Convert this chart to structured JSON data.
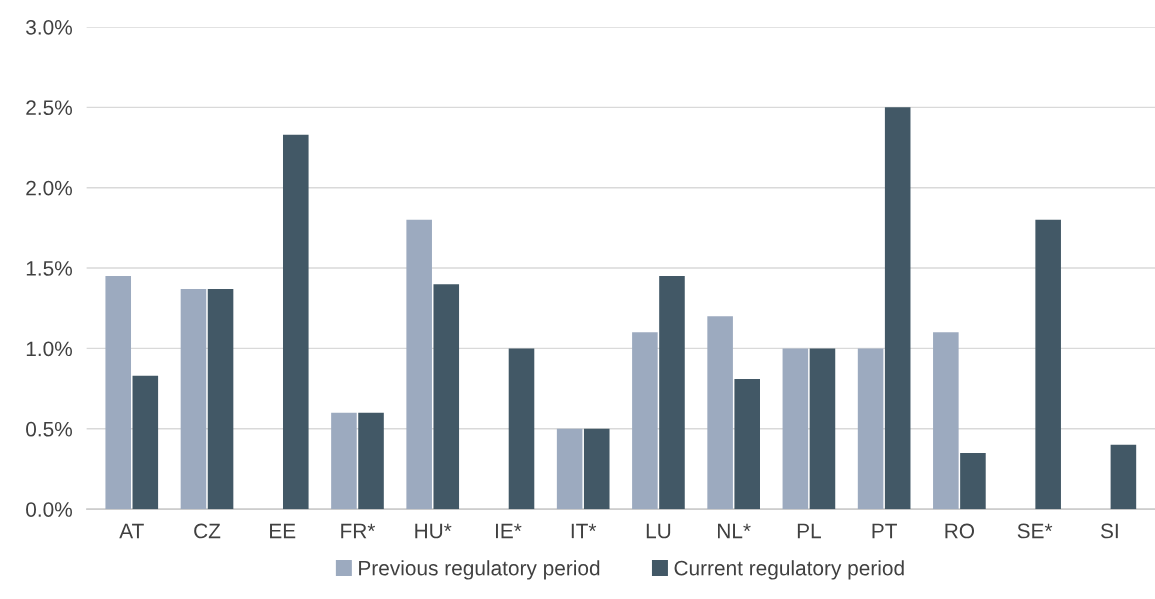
{
  "chart_data": {
    "type": "bar",
    "categories": [
      "AT",
      "CZ",
      "EE",
      "FR*",
      "HU*",
      "IE*",
      "IT*",
      "LU",
      "NL*",
      "PL",
      "PT",
      "RO",
      "SE*",
      "SI"
    ],
    "series": [
      {
        "name": "Previous regulatory period",
        "color": "#9caabf",
        "values": [
          1.45,
          1.37,
          null,
          0.6,
          1.8,
          null,
          0.5,
          1.1,
          1.2,
          1.0,
          1.0,
          1.1,
          null,
          null
        ]
      },
      {
        "name": "Current regulatory period",
        "color": "#425866",
        "values": [
          0.83,
          1.37,
          2.33,
          0.6,
          1.4,
          1.0,
          0.5,
          1.45,
          0.81,
          1.0,
          2.5,
          0.35,
          1.8,
          0.4
        ]
      }
    ],
    "ylim": [
      0,
      3
    ],
    "yticks": [
      {
        "value": 0,
        "label": "0.0%"
      },
      {
        "value": 0.5,
        "label": "0.5%"
      },
      {
        "value": 1,
        "label": "1.0%"
      },
      {
        "value": 1.5,
        "label": "1.5%"
      },
      {
        "value": 2,
        "label": "2.0%"
      },
      {
        "value": 2.5,
        "label": "2.5%"
      },
      {
        "value": 3,
        "label": "3.0%"
      }
    ],
    "grid": "y",
    "legend": "bottom"
  }
}
